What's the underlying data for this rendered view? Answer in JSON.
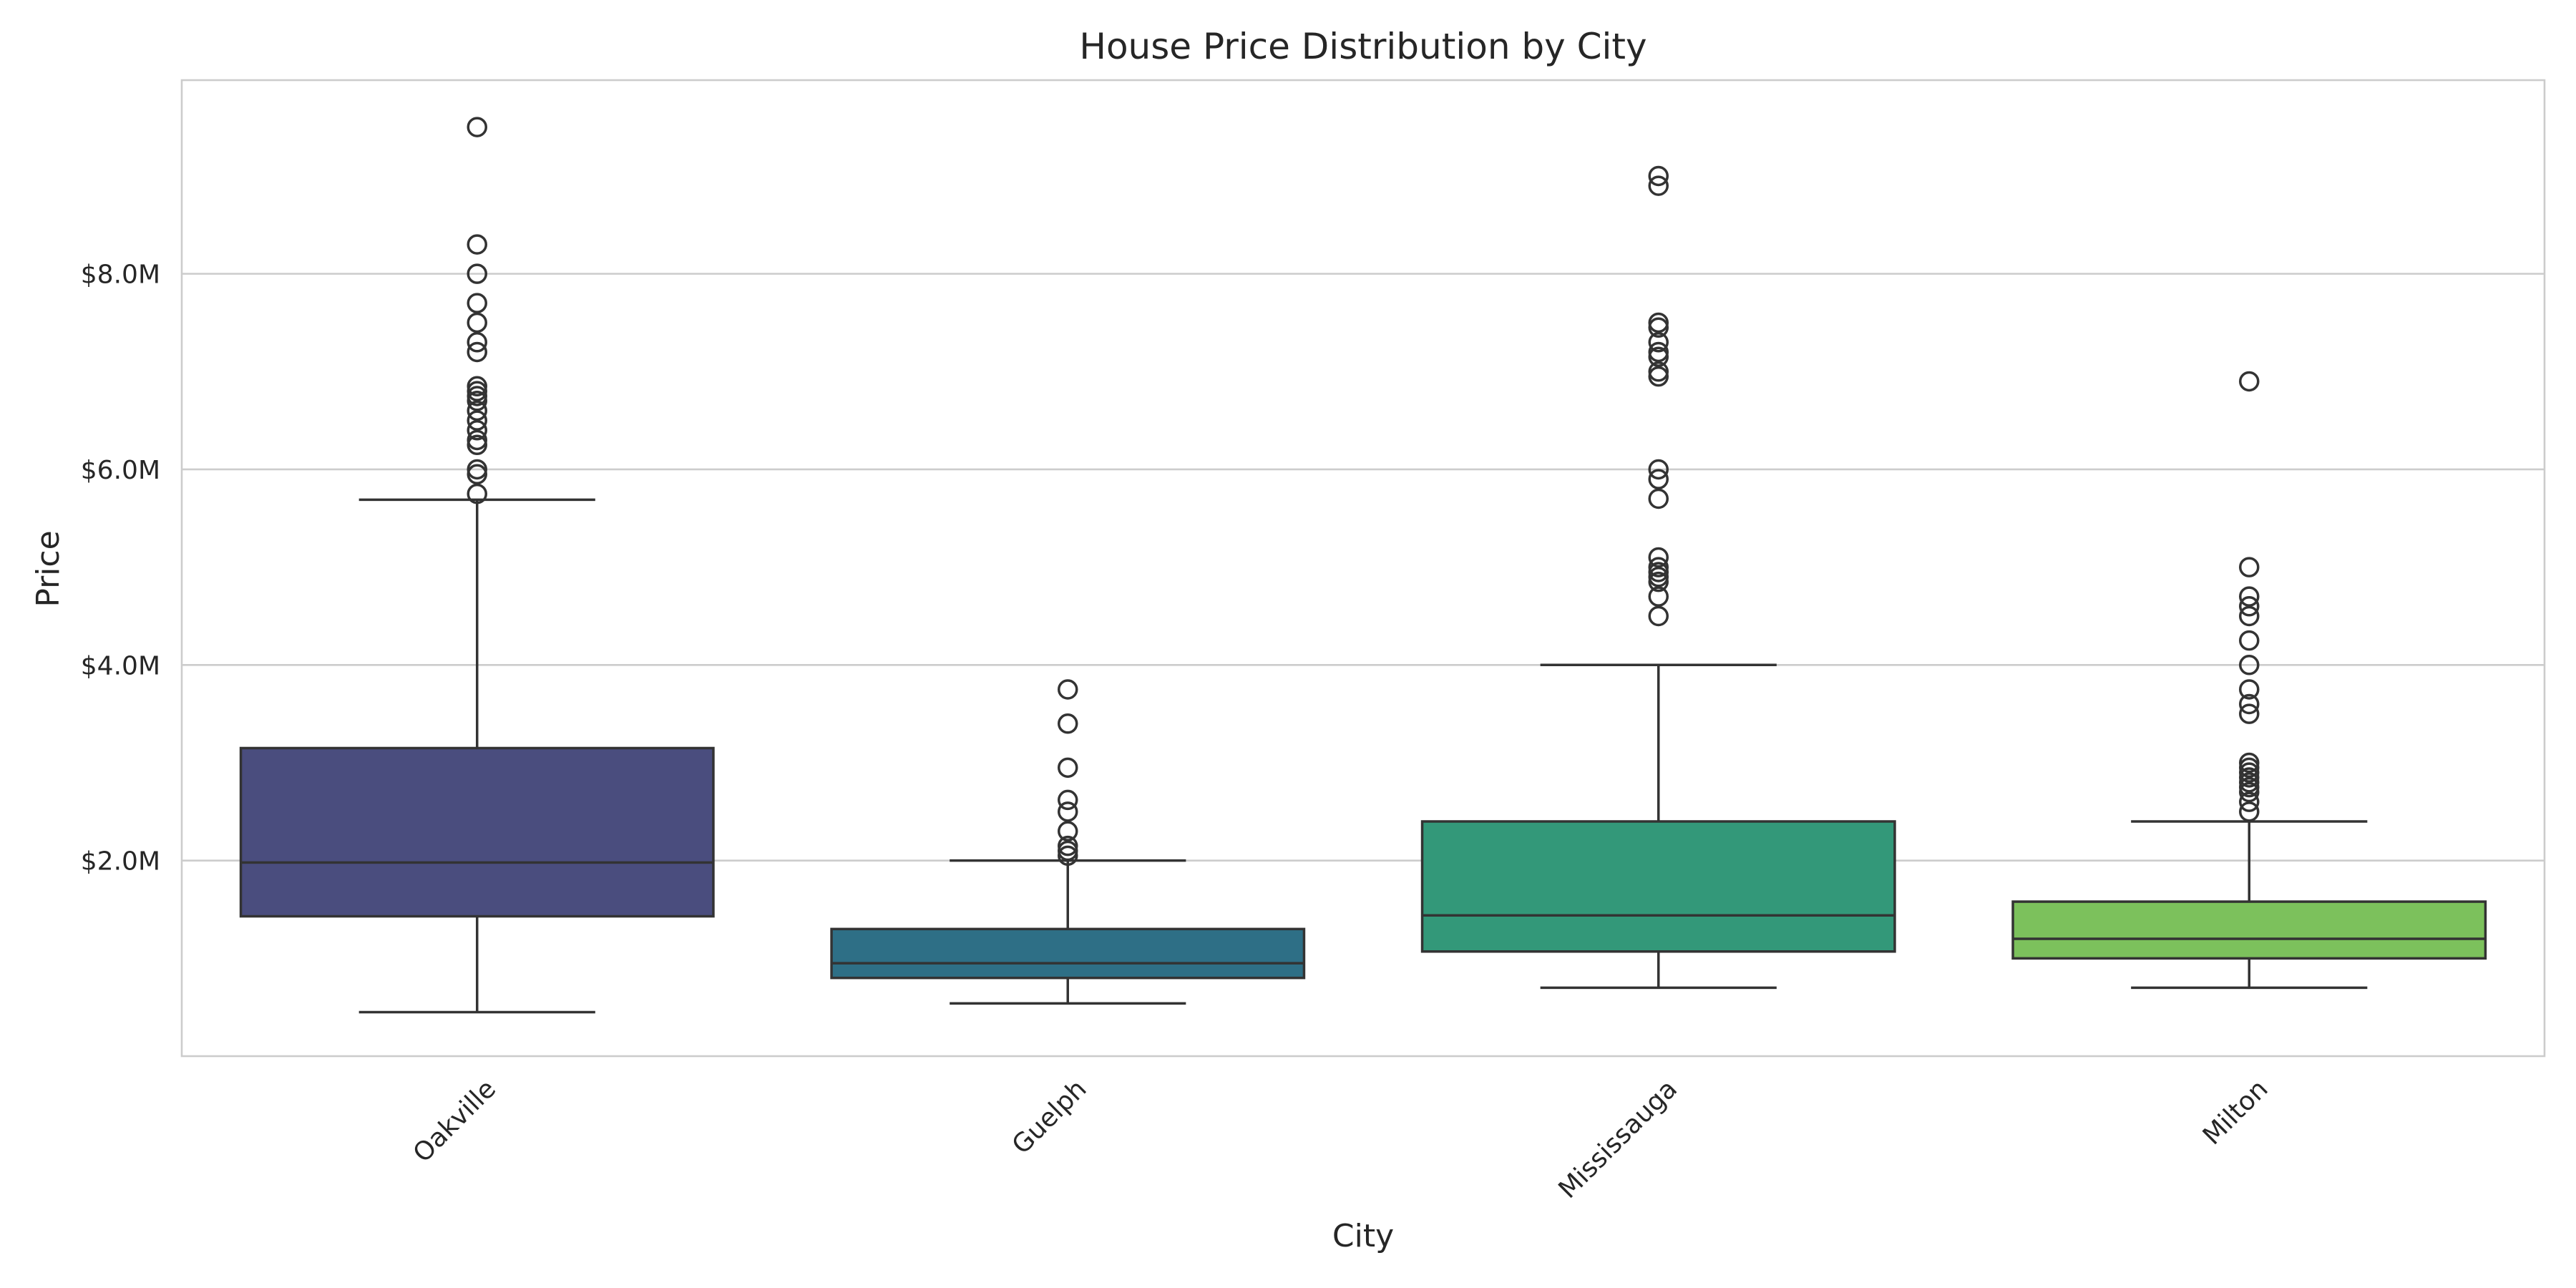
{
  "chart_data": {
    "type": "box",
    "title": "House Price Distribution by City",
    "xlabel": "City",
    "ylabel": "Price",
    "ylim": [
      0.0,
      9.98
    ],
    "yticks": [
      {
        "value": 2.0,
        "label": "$2.0M"
      },
      {
        "value": 4.0,
        "label": "$4.0M"
      },
      {
        "value": 6.0,
        "label": "$6.0M"
      },
      {
        "value": 8.0,
        "label": "$8.0M"
      }
    ],
    "grid": true,
    "colors": [
      "#4a4d7e",
      "#2e6f86",
      "#339879",
      "#7cc15c"
    ],
    "categories": [
      "Oakville",
      "Guelph",
      "Mississauga",
      "Milton"
    ],
    "boxes": [
      {
        "name": "Oakville",
        "whisker_low": 0.45,
        "q1": 1.43,
        "median": 1.98,
        "q3": 3.15,
        "whisker_high": 5.69,
        "outliers": [
          5.75,
          5.95,
          6.0,
          6.25,
          6.3,
          6.4,
          6.5,
          6.6,
          6.7,
          6.75,
          6.8,
          6.85,
          7.2,
          7.3,
          7.5,
          7.7,
          8.0,
          8.3,
          9.5
        ]
      },
      {
        "name": "Guelph",
        "whisker_low": 0.54,
        "q1": 0.8,
        "median": 0.95,
        "q3": 1.3,
        "whisker_high": 2.0,
        "outliers": [
          2.05,
          2.1,
          2.15,
          2.3,
          2.5,
          2.62,
          2.95,
          3.4,
          3.75
        ]
      },
      {
        "name": "Mississauga",
        "whisker_low": 0.7,
        "q1": 1.07,
        "median": 1.44,
        "q3": 2.4,
        "whisker_high": 4.0,
        "outliers": [
          4.5,
          4.7,
          4.85,
          4.9,
          4.95,
          5.0,
          5.1,
          5.7,
          5.9,
          6.0,
          6.95,
          7.0,
          7.15,
          7.2,
          7.3,
          7.45,
          7.5,
          8.9,
          9.0
        ]
      },
      {
        "name": "Milton",
        "whisker_low": 0.7,
        "q1": 1.0,
        "median": 1.2,
        "q3": 1.58,
        "whisker_high": 2.4,
        "outliers": [
          2.5,
          2.6,
          2.7,
          2.75,
          2.8,
          2.85,
          2.9,
          2.95,
          3.0,
          3.5,
          3.6,
          3.75,
          4.0,
          4.25,
          4.5,
          4.6,
          4.7,
          5.0,
          6.9
        ]
      }
    ]
  }
}
